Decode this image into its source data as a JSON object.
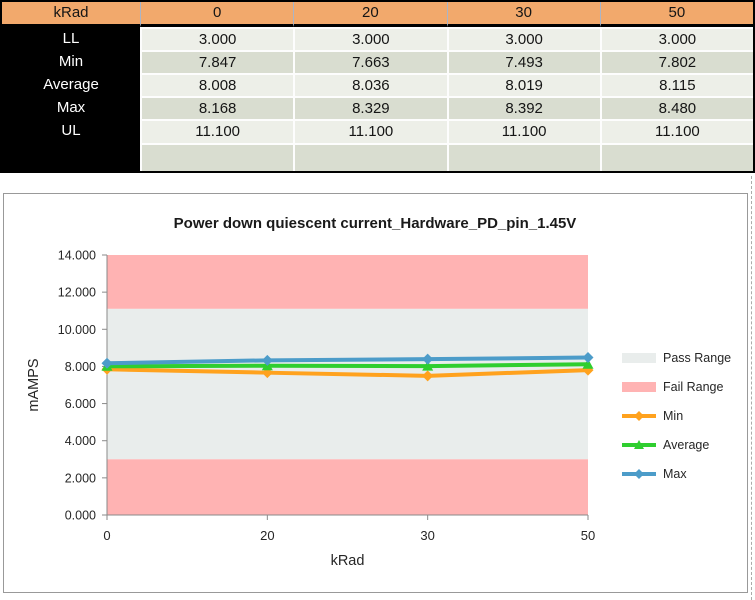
{
  "table": {
    "header": {
      "label": "kRad",
      "columns": [
        "0",
        "20",
        "30",
        "50"
      ]
    },
    "rows": [
      {
        "label": "LL",
        "values": [
          "3.000",
          "3.000",
          "3.000",
          "3.000"
        ]
      },
      {
        "label": "Min",
        "values": [
          "7.847",
          "7.663",
          "7.493",
          "7.802"
        ]
      },
      {
        "label": "Average",
        "values": [
          "8.008",
          "8.036",
          "8.019",
          "8.115"
        ]
      },
      {
        "label": "Max",
        "values": [
          "8.168",
          "8.329",
          "8.392",
          "8.480"
        ]
      },
      {
        "label": "UL",
        "values": [
          "11.100",
          "11.100",
          "11.100",
          "11.100"
        ]
      },
      {
        "label": "",
        "values": [
          "",
          "",
          "",
          ""
        ]
      }
    ],
    "colors": {
      "header_bg": "#F2A96C",
      "row_light": "#EDEFE8",
      "row_dark": "#D9DDD0",
      "label_bg": "#000000",
      "label_text": "#FFFFFF"
    }
  },
  "chart_data": {
    "type": "line",
    "title": "Power down quiescent current_Hardware_PD_pin_1.45V",
    "xlabel": "kRad",
    "ylabel": "mAMPS",
    "categories": [
      "0",
      "20",
      "30",
      "50"
    ],
    "ylim": [
      0,
      14
    ],
    "ytick_step": 2,
    "yticks": [
      "0.000",
      "2.000",
      "4.000",
      "6.000",
      "8.000",
      "10.000",
      "12.000",
      "14.000"
    ],
    "grid": false,
    "legend_position": "right",
    "bands": [
      {
        "name": "Fail Range",
        "from": 11.1,
        "to": 14,
        "color": "#FFB3B3"
      },
      {
        "name": "Pass Range",
        "from": 3,
        "to": 11.1,
        "color": "#E9EDEC"
      },
      {
        "name": "Fail Range",
        "from": 0,
        "to": 3,
        "color": "#FFB3B3"
      }
    ],
    "series": [
      {
        "name": "Min",
        "color": "#FFA21E",
        "marker": "diamond",
        "values": [
          7.847,
          7.663,
          7.493,
          7.802
        ]
      },
      {
        "name": "Average",
        "color": "#2FCE2F",
        "marker": "triangle",
        "values": [
          8.008,
          8.036,
          8.019,
          8.115
        ]
      },
      {
        "name": "Max",
        "color": "#4C9CC9",
        "marker": "diamond",
        "values": [
          8.168,
          8.329,
          8.392,
          8.48
        ]
      }
    ],
    "legend": [
      {
        "label": "Pass Range",
        "type": "box",
        "color": "#E9EDEC"
      },
      {
        "label": "Fail Range",
        "type": "box",
        "color": "#FFB3B3"
      },
      {
        "label": "Min",
        "type": "line",
        "color": "#FFA21E",
        "marker": "diamond"
      },
      {
        "label": "Average",
        "type": "line",
        "color": "#2FCE2F",
        "marker": "triangle"
      },
      {
        "label": "Max",
        "type": "line",
        "color": "#4C9CC9",
        "marker": "diamond"
      }
    ]
  }
}
